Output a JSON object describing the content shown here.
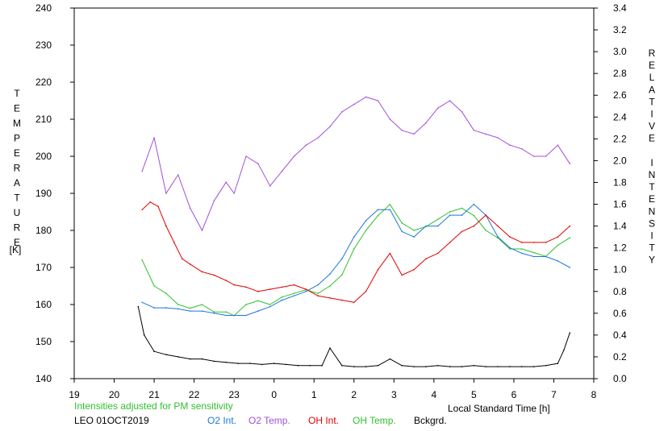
{
  "chart_data": {
    "type": "line",
    "left_axis": {
      "label": "TEMPERATURE",
      "unit": "[K]",
      "ticks": [
        "240",
        "230",
        "220",
        "210",
        "200",
        "190",
        "180",
        "170",
        "160",
        "150",
        "140"
      ],
      "ylim": [
        140,
        240
      ]
    },
    "right_axis": {
      "label": "RELATIVE INTENSITY",
      "ticks": [
        "3.4",
        "3.2",
        "3.0",
        "2.8",
        "2.6",
        "2.4",
        "2.2",
        "2.0",
        "1.8",
        "1.6",
        "1.4",
        "1.2",
        "1.0",
        "0.8",
        "0.6",
        "0.4",
        "0.2",
        "0.0"
      ],
      "ylim": [
        0.0,
        3.4
      ]
    },
    "x_axis": {
      "label": "Local Standard Time [h]",
      "ticks": [
        "19",
        "20",
        "21",
        "22",
        "23",
        "0",
        "1",
        "2",
        "3",
        "4",
        "5",
        "6",
        "7",
        "8"
      ],
      "xlim": [
        19,
        32
      ]
    },
    "note": "Intensities adjusted for PM sensitivity",
    "station": "LEO 01OCT2019",
    "legend": [
      {
        "name": "O2 Int.",
        "color": "#1e78d8"
      },
      {
        "name": "O2 Temp.",
        "color": "#a050d8"
      },
      {
        "name": "OH Int.",
        "color": "#e00000"
      },
      {
        "name": "OH Temp.",
        "color": "#30c030"
      },
      {
        "name": "Bckgrd.",
        "color": "#000000"
      }
    ],
    "series": [
      {
        "name": "O2 Temp.",
        "axis": "left",
        "color": "#a050d8",
        "x": [
          20.7,
          21.0,
          21.3,
          21.6,
          21.9,
          22.2,
          22.5,
          22.8,
          23.0,
          23.3,
          23.6,
          23.9,
          24.2,
          24.5,
          24.8,
          25.1,
          25.4,
          25.7,
          26.0,
          26.3,
          26.6,
          26.9,
          27.2,
          27.5,
          27.8,
          28.1,
          28.4,
          28.7,
          29.0,
          29.3,
          29.6,
          29.9,
          30.2,
          30.5,
          30.8,
          31.1,
          31.4
        ],
        "y": [
          196,
          205,
          190,
          195,
          186,
          180,
          188,
          193,
          190,
          200,
          198,
          192,
          196,
          200,
          203,
          205,
          208,
          212,
          214,
          216,
          215,
          210,
          207,
          206,
          209,
          213,
          215,
          212,
          207,
          206,
          205,
          203,
          202,
          200,
          200,
          203,
          198
        ]
      },
      {
        "name": "OH Temp.",
        "axis": "left",
        "color": "#30c030",
        "x": [
          20.7,
          21.0,
          21.3,
          21.6,
          21.9,
          22.2,
          22.5,
          22.8,
          23.0,
          23.3,
          23.6,
          23.9,
          24.2,
          24.5,
          24.8,
          25.1,
          25.4,
          25.7,
          26.0,
          26.3,
          26.6,
          26.9,
          27.2,
          27.5,
          27.8,
          28.1,
          28.4,
          28.7,
          29.0,
          29.3,
          29.6,
          29.9,
          30.2,
          30.5,
          30.8,
          31.1,
          31.4
        ],
        "y": [
          172,
          165,
          163,
          160,
          159,
          160,
          158,
          158,
          157,
          160,
          161,
          160,
          162,
          163,
          164,
          163,
          165,
          168,
          175,
          180,
          184,
          187,
          182,
          180,
          181,
          183,
          185,
          186,
          184,
          180,
          178,
          175,
          175,
          174,
          173,
          176,
          178
        ]
      },
      {
        "name": "O2 Int.",
        "axis": "right",
        "color": "#1e78d8",
        "x": [
          20.7,
          21.0,
          21.3,
          21.6,
          21.9,
          22.2,
          22.5,
          22.8,
          23.0,
          23.3,
          23.6,
          23.9,
          24.2,
          24.5,
          24.8,
          25.1,
          25.4,
          25.7,
          26.0,
          26.3,
          26.6,
          26.9,
          27.2,
          27.5,
          27.8,
          28.1,
          28.4,
          28.7,
          29.0,
          29.3,
          29.6,
          29.9,
          30.2,
          30.5,
          30.8,
          31.1,
          31.4
        ],
        "y": [
          0.7,
          0.65,
          0.65,
          0.64,
          0.62,
          0.62,
          0.6,
          0.58,
          0.58,
          0.58,
          0.62,
          0.66,
          0.72,
          0.76,
          0.8,
          0.86,
          0.96,
          1.1,
          1.3,
          1.45,
          1.55,
          1.55,
          1.35,
          1.3,
          1.4,
          1.4,
          1.5,
          1.5,
          1.6,
          1.5,
          1.3,
          1.2,
          1.15,
          1.12,
          1.12,
          1.08,
          1.02
        ]
      },
      {
        "name": "OH Int.",
        "axis": "right",
        "color": "#e00000",
        "x": [
          20.7,
          20.9,
          21.1,
          21.3,
          21.5,
          21.7,
          21.9,
          22.2,
          22.5,
          22.8,
          23.0,
          23.3,
          23.6,
          23.9,
          24.2,
          24.5,
          24.8,
          25.1,
          25.4,
          25.7,
          26.0,
          26.3,
          26.6,
          26.9,
          27.2,
          27.5,
          27.8,
          28.1,
          28.4,
          28.7,
          29.0,
          29.3,
          29.6,
          29.9,
          30.2,
          30.5,
          30.8,
          31.1,
          31.4
        ],
        "y": [
          1.55,
          1.62,
          1.58,
          1.4,
          1.25,
          1.1,
          1.05,
          0.98,
          0.95,
          0.9,
          0.86,
          0.84,
          0.8,
          0.82,
          0.84,
          0.86,
          0.82,
          0.76,
          0.74,
          0.72,
          0.7,
          0.8,
          1.0,
          1.15,
          0.95,
          1.0,
          1.1,
          1.15,
          1.25,
          1.35,
          1.4,
          1.5,
          1.4,
          1.3,
          1.25,
          1.25,
          1.25,
          1.3,
          1.4
        ]
      },
      {
        "name": "Bckgrd.",
        "axis": "right",
        "color": "#000000",
        "x": [
          20.6,
          20.75,
          21.0,
          21.3,
          21.6,
          21.9,
          22.2,
          22.5,
          22.8,
          23.1,
          23.4,
          23.7,
          24.0,
          24.3,
          24.6,
          24.9,
          25.2,
          25.4,
          25.7,
          26.0,
          26.3,
          26.6,
          26.9,
          27.2,
          27.5,
          27.8,
          28.1,
          28.4,
          28.7,
          29.0,
          29.3,
          29.6,
          29.9,
          30.2,
          30.5,
          30.8,
          31.1,
          31.25,
          31.4
        ],
        "y": [
          0.66,
          0.4,
          0.25,
          0.22,
          0.2,
          0.18,
          0.18,
          0.16,
          0.15,
          0.14,
          0.14,
          0.13,
          0.14,
          0.13,
          0.12,
          0.12,
          0.12,
          0.28,
          0.12,
          0.11,
          0.11,
          0.12,
          0.18,
          0.12,
          0.11,
          0.11,
          0.12,
          0.11,
          0.11,
          0.12,
          0.11,
          0.11,
          0.11,
          0.11,
          0.11,
          0.12,
          0.14,
          0.26,
          0.42
        ]
      }
    ]
  }
}
